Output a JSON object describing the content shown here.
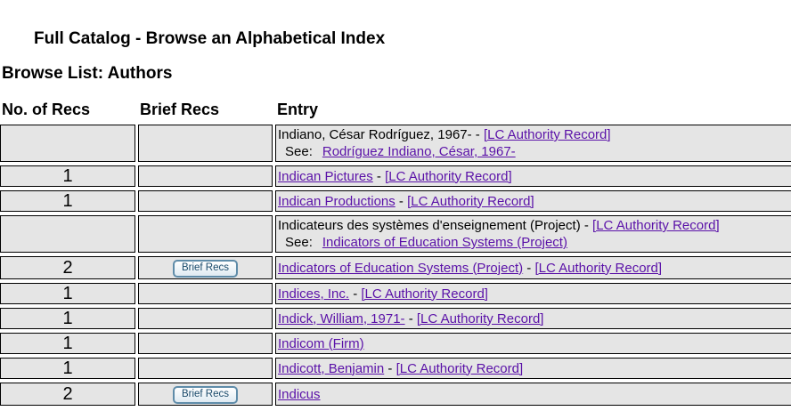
{
  "page": {
    "title": "Full Catalog - Browse an Alphabetical Index",
    "browse_list_heading": "Browse List: Authors"
  },
  "table": {
    "headers": {
      "no_of_recs": "No. of Recs",
      "brief_recs": "Brief Recs",
      "entry": "Entry"
    },
    "brief_recs_button_label": "Brief Recs",
    "see_label": "See:",
    "separator": " - ",
    "authority_label": "[LC Authority Record]",
    "rows": [
      {
        "no_of_recs": "",
        "brief_recs_button": false,
        "entry_name": "Indiano, César Rodríguez, 1967-",
        "entry_name_is_link": false,
        "has_authority_link": true,
        "see_reference": "Rodríguez Indiano, César, 1967-"
      },
      {
        "no_of_recs": "1",
        "brief_recs_button": false,
        "entry_name": "Indican Pictures",
        "entry_name_is_link": true,
        "has_authority_link": true,
        "see_reference": null
      },
      {
        "no_of_recs": "1",
        "brief_recs_button": false,
        "entry_name": "Indican Productions",
        "entry_name_is_link": true,
        "has_authority_link": true,
        "see_reference": null
      },
      {
        "no_of_recs": "",
        "brief_recs_button": false,
        "entry_name": "Indicateurs des systèmes d'enseignement (Project)",
        "entry_name_is_link": false,
        "has_authority_link": true,
        "see_reference": "Indicators of Education Systems (Project)"
      },
      {
        "no_of_recs": "2",
        "brief_recs_button": true,
        "entry_name": "Indicators of Education Systems (Project)",
        "entry_name_is_link": true,
        "has_authority_link": true,
        "see_reference": null
      },
      {
        "no_of_recs": "1",
        "brief_recs_button": false,
        "entry_name": "Indices, Inc.",
        "entry_name_is_link": true,
        "has_authority_link": true,
        "see_reference": null
      },
      {
        "no_of_recs": "1",
        "brief_recs_button": false,
        "entry_name": "Indick, William, 1971-",
        "entry_name_is_link": true,
        "has_authority_link": true,
        "see_reference": null
      },
      {
        "no_of_recs": "1",
        "brief_recs_button": false,
        "entry_name": "Indicom (Firm)",
        "entry_name_is_link": true,
        "has_authority_link": false,
        "see_reference": null
      },
      {
        "no_of_recs": "1",
        "brief_recs_button": false,
        "entry_name": "Indicott, Benjamin",
        "entry_name_is_link": true,
        "has_authority_link": true,
        "see_reference": null
      },
      {
        "no_of_recs": "2",
        "brief_recs_button": true,
        "entry_name": "Indicus",
        "entry_name_is_link": true,
        "has_authority_link": false,
        "see_reference": null
      }
    ]
  },
  "colors": {
    "link": "#5a11a8",
    "cell_bg": "#e5e5e5",
    "border": "#000000",
    "button_border": "#5f8ca9",
    "button_text": "#1a4a6b"
  }
}
